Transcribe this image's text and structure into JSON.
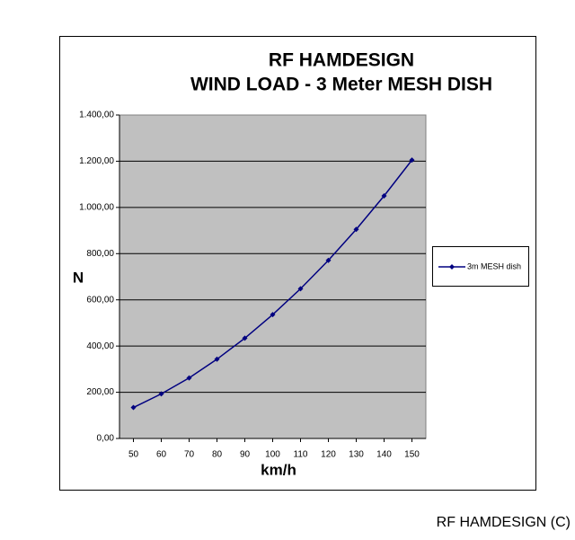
{
  "chart_data": {
    "type": "line",
    "title": "RF HAMDESIGN",
    "subtitle": "WIND LOAD - 3 Meter MESH DISH",
    "x_label": "km/h",
    "y_label": "N",
    "x": [
      50,
      60,
      70,
      80,
      90,
      100,
      110,
      120,
      130,
      140,
      150
    ],
    "xlim": [
      45,
      155
    ],
    "xticks": [
      50,
      60,
      70,
      80,
      90,
      100,
      110,
      120,
      130,
      140,
      150
    ],
    "series": [
      {
        "name": "3m MESH dish",
        "color": "#000080",
        "values": [
          134,
          193,
          262,
          343,
          434,
          536,
          648,
          771,
          905,
          1050,
          1205
        ]
      }
    ],
    "ylim": [
      0,
      1400
    ],
    "yticks": [
      {
        "value": 0,
        "label": "0,00"
      },
      {
        "value": 200,
        "label": "200,00"
      },
      {
        "value": 400,
        "label": "400,00"
      },
      {
        "value": 600,
        "label": "600,00"
      },
      {
        "value": 800,
        "label": "800,00"
      },
      {
        "value": 1000,
        "label": "1.000,00"
      },
      {
        "value": 1200,
        "label": "1.200,00"
      },
      {
        "value": 1400,
        "label": "1.400,00"
      }
    ],
    "grid": true,
    "legend": "right",
    "footer": "RF HAMDESIGN (C)"
  }
}
